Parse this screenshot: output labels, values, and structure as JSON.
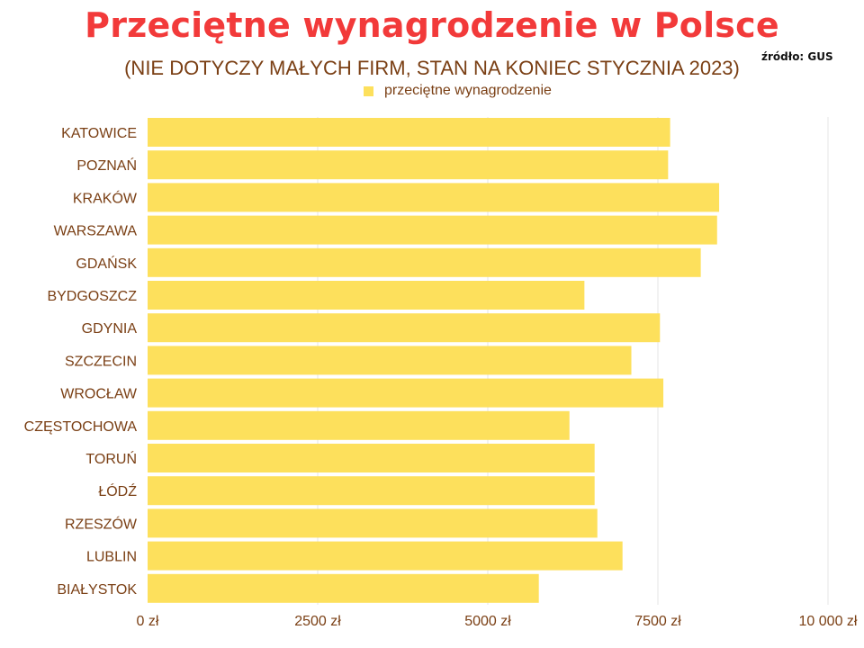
{
  "chart_data": {
    "type": "bar",
    "orientation": "horizontal",
    "title": "Przeciętne wynagrodzenie w Polsce",
    "subtitle": "(NIE DOTYCZY MAŁYCH FIRM, STAN NA KONIEC STYCZNIA 2023)",
    "source": "źródło: GUS",
    "legend_position": "top-center",
    "grid": true,
    "categories": [
      "KATOWICE",
      "POZNAŃ",
      "KRAKÓW",
      "WARSZAWA",
      "GDAŃSK",
      "BYDGOSZCZ",
      "GDYNIA",
      "SZCZECIN",
      "WROCŁAW",
      "CZĘSTOCHOWA",
      "TORUŃ",
      "ŁÓDŹ",
      "RZESZÓW",
      "LUBLIN",
      "BIAŁYSTOK"
    ],
    "series": [
      {
        "name": "przeciętne wynagrodzenie",
        "color": "#fde05c",
        "values": [
          7680,
          7650,
          8400,
          8370,
          8130,
          6420,
          7530,
          7110,
          7580,
          6200,
          6570,
          6570,
          6610,
          6980,
          5750
        ]
      }
    ],
    "xlim": [
      0,
      10000
    ],
    "ticks": [
      0,
      2500,
      5000,
      7500,
      10000
    ],
    "tick_labels": [
      "0 zł",
      "2500 zł",
      "5000 zł",
      "7500 zł",
      "10 000 zł"
    ]
  }
}
